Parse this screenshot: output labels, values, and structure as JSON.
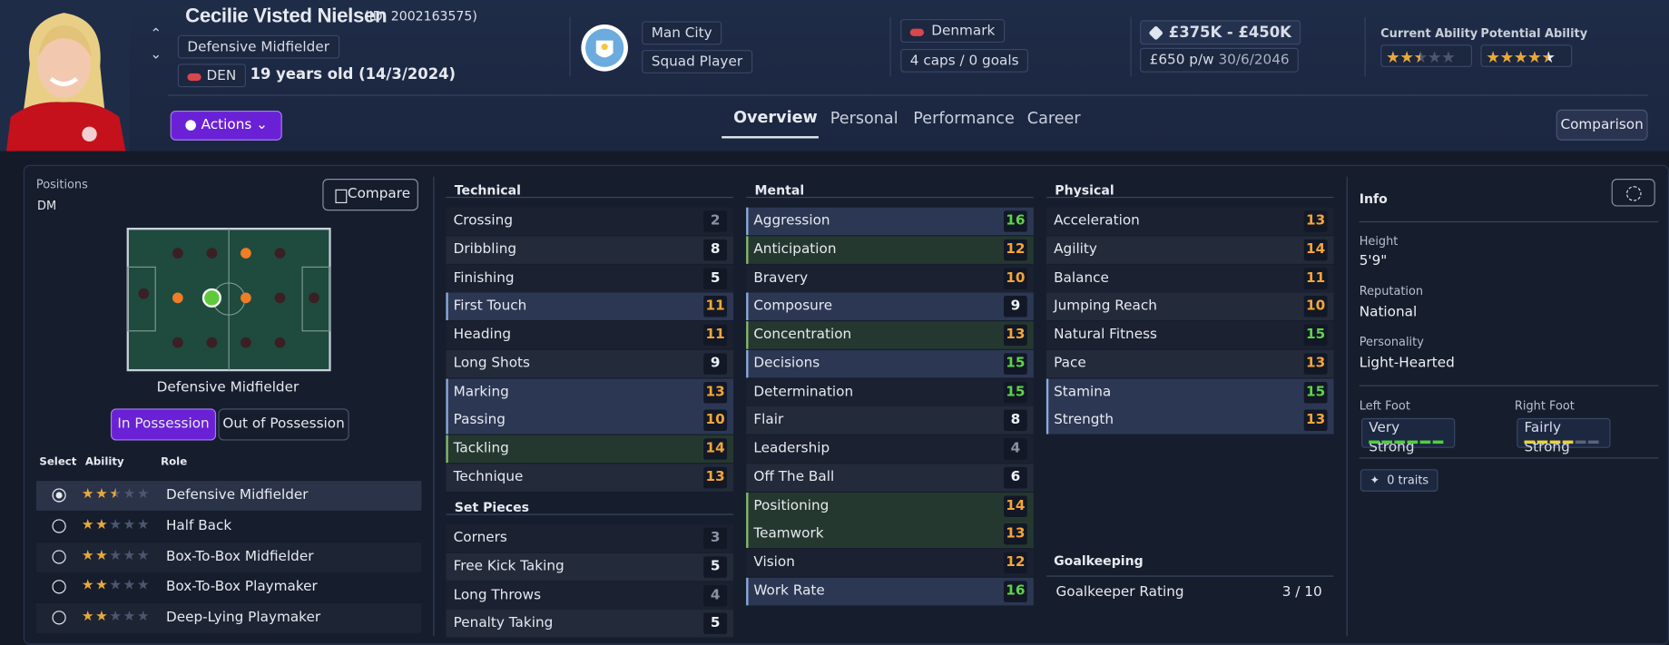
{
  "header": {
    "name": "Cecilie Visted Nielsen",
    "id": "(ID: 2002163575)",
    "position": "Defensive Midfielder",
    "nation": "DEN",
    "age": "19 years old (14/3/2024)",
    "club": "Man City",
    "status": "Squad Player",
    "country": "Denmark",
    "caps": "4 caps / 0 goals",
    "value": "£375K - £450K",
    "wage": "£650 p/w",
    "contract": "30/6/2046",
    "current_ability": {
      "label": "Current Ability",
      "stars": 2.5
    },
    "potential_ability": {
      "label": "Potential Ability",
      "stars": 4.5
    }
  },
  "actions": "Actions",
  "tabs": [
    "Overview",
    "Personal",
    "Performance",
    "Career"
  ],
  "comparison": "Comparison",
  "positions": {
    "title": "Positions",
    "value": "DM",
    "compare": "Compare",
    "role_title": "Defensive Midfielder",
    "toggle": [
      "In Possession",
      "Out of Possession"
    ],
    "columns": [
      "Select",
      "Ability",
      "Role"
    ],
    "roles": [
      {
        "name": "Defensive Midfielder",
        "stars": 2.5
      },
      {
        "name": "Half Back",
        "stars": 2
      },
      {
        "name": "Box-To-Box Midfielder",
        "stars": 2
      },
      {
        "name": "Box-To-Box Playmaker",
        "stars": 2
      },
      {
        "name": "Deep-Lying Playmaker",
        "stars": 2
      }
    ]
  },
  "technical": {
    "title": "Technical",
    "rows": [
      {
        "name": "Crossing",
        "value": 2
      },
      {
        "name": "Dribbling",
        "value": 8
      },
      {
        "name": "Finishing",
        "value": 5
      },
      {
        "name": "First Touch",
        "value": 11,
        "highlight": "blue"
      },
      {
        "name": "Heading",
        "value": 11
      },
      {
        "name": "Long Shots",
        "value": 9
      },
      {
        "name": "Marking",
        "value": 13,
        "highlight": "blue"
      },
      {
        "name": "Passing",
        "value": 10,
        "highlight": "blue"
      },
      {
        "name": "Tackling",
        "value": 14,
        "highlight": "green"
      },
      {
        "name": "Technique",
        "value": 13
      }
    ]
  },
  "set_pieces": {
    "title": "Set Pieces",
    "rows": [
      {
        "name": "Corners",
        "value": 3
      },
      {
        "name": "Free Kick Taking",
        "value": 5
      },
      {
        "name": "Long Throws",
        "value": 4
      },
      {
        "name": "Penalty Taking",
        "value": 5
      }
    ]
  },
  "mental": {
    "title": "Mental",
    "rows": [
      {
        "name": "Aggression",
        "value": 16,
        "highlight": "blue"
      },
      {
        "name": "Anticipation",
        "value": 12,
        "highlight": "green"
      },
      {
        "name": "Bravery",
        "value": 10
      },
      {
        "name": "Composure",
        "value": 9,
        "highlight": "blue"
      },
      {
        "name": "Concentration",
        "value": 13,
        "highlight": "green"
      },
      {
        "name": "Decisions",
        "value": 15,
        "highlight": "blue"
      },
      {
        "name": "Determination",
        "value": 15
      },
      {
        "name": "Flair",
        "value": 8
      },
      {
        "name": "Leadership",
        "value": 4
      },
      {
        "name": "Off The Ball",
        "value": 6
      },
      {
        "name": "Positioning",
        "value": 14,
        "highlight": "green"
      },
      {
        "name": "Teamwork",
        "value": 13,
        "highlight": "green"
      },
      {
        "name": "Vision",
        "value": 12
      },
      {
        "name": "Work Rate",
        "value": 16,
        "highlight": "blue"
      }
    ]
  },
  "physical": {
    "title": "Physical",
    "rows": [
      {
        "name": "Acceleration",
        "value": 13
      },
      {
        "name": "Agility",
        "value": 14
      },
      {
        "name": "Balance",
        "value": 11
      },
      {
        "name": "Jumping Reach",
        "value": 10
      },
      {
        "name": "Natural Fitness",
        "value": 15
      },
      {
        "name": "Pace",
        "value": 13
      },
      {
        "name": "Stamina",
        "value": 15,
        "highlight": "blue"
      },
      {
        "name": "Strength",
        "value": 13,
        "highlight": "blue"
      }
    ]
  },
  "goalkeeping": {
    "title": "Goalkeeping",
    "label": "Goalkeeper Rating",
    "value": "3 / 10"
  },
  "info": {
    "title": "Info",
    "height_label": "Height",
    "height": "5'9\"",
    "reputation_label": "Reputation",
    "reputation": "National",
    "personality_label": "Personality",
    "personality": "Light-Hearted",
    "left_foot_label": "Left Foot",
    "left_foot": "Very Strong",
    "left_foot_bars": 6,
    "right_foot_label": "Right Foot",
    "right_foot": "Fairly Strong",
    "right_foot_bars": 4,
    "traits": "0 traits"
  }
}
